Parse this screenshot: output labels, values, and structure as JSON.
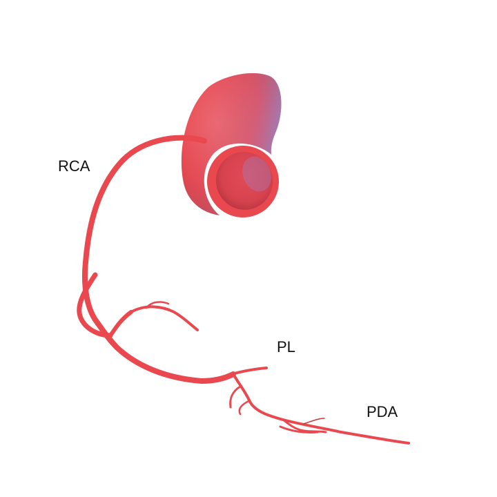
{
  "labels": {
    "rca": "RCA",
    "pl": "PL",
    "pda": "PDA"
  },
  "colors": {
    "vessel": "#e8484e",
    "vessel_dark": "#c8353c",
    "vessel_light": "#f06a70",
    "aorta_shadow": "#9a88c8",
    "label_text": "#111111"
  }
}
